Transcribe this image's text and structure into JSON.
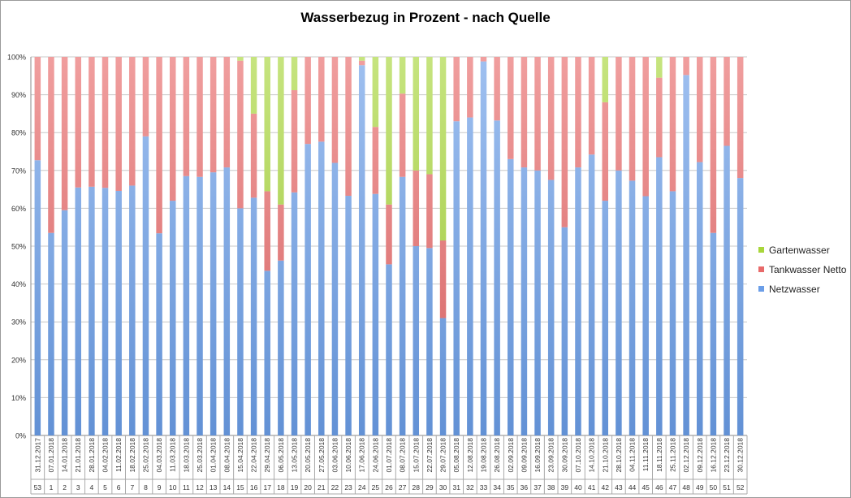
{
  "chart_data": {
    "type": "bar",
    "stacked": true,
    "normalized": true,
    "title": "Wasserbezug in Prozent - nach Quelle",
    "xlabel": "",
    "ylabel": "",
    "ylim": [
      0,
      100
    ],
    "y_ticks": [
      "0%",
      "10%",
      "20%",
      "30%",
      "40%",
      "50%",
      "60%",
      "70%",
      "80%",
      "90%",
      "100%"
    ],
    "grid": true,
    "legend_position": "right",
    "categories": [
      "31.12.2017",
      "07.01.2018",
      "14.01.2018",
      "21.01.2018",
      "28.01.2018",
      "04.02.2018",
      "11.02.2018",
      "18.02.2018",
      "25.02.2018",
      "04.03.2018",
      "11.03.2018",
      "18.03.2018",
      "25.03.2018",
      "01.04.2018",
      "08.04.2018",
      "15.04.2018",
      "22.04.2018",
      "29.04.2018",
      "06.05.2018",
      "13.05.2018",
      "20.05.2018",
      "27.05.2018",
      "03.06.2018",
      "10.06.2018",
      "17.06.2018",
      "24.06.2018",
      "01.07.2018",
      "08.07.2018",
      "15.07.2018",
      "22.07.2018",
      "29.07.2018",
      "05.08.2018",
      "12.08.2018",
      "19.08.2018",
      "26.08.2018",
      "02.09.2018",
      "09.09.2018",
      "16.09.2018",
      "23.09.2018",
      "30.09.2018",
      "07.10.2018",
      "14.10.2018",
      "21.10.2018",
      "28.10.2018",
      "04.11.2018",
      "11.11.2018",
      "18.11.2018",
      "25.11.2018",
      "02.12.2018",
      "09.12.2018",
      "16.12.2018",
      "23.12.2018",
      "30.12.2018"
    ],
    "week_numbers": [
      "53",
      "1",
      "2",
      "3",
      "4",
      "5",
      "6",
      "7",
      "8",
      "9",
      "10",
      "11",
      "12",
      "13",
      "14",
      "15",
      "16",
      "17",
      "18",
      "19",
      "20",
      "21",
      "22",
      "23",
      "24",
      "25",
      "26",
      "27",
      "28",
      "29",
      "30",
      "31",
      "32",
      "33",
      "34",
      "35",
      "36",
      "37",
      "38",
      "39",
      "40",
      "41",
      "42",
      "43",
      "44",
      "45",
      "46",
      "47",
      "48",
      "49",
      "50",
      "51",
      "52"
    ],
    "series": [
      {
        "name": "Netzwasser",
        "color": "#6b9ee8",
        "values": [
          72.7,
          53.5,
          59.5,
          65.5,
          65.7,
          65.4,
          64.6,
          66.0,
          79.0,
          53.4,
          62.0,
          68.5,
          68.3,
          69.5,
          70.8,
          60.0,
          62.8,
          43.5,
          46.2,
          64.2,
          77.0,
          77.6,
          72.0,
          63.3,
          97.8,
          63.8,
          45.2,
          68.3,
          50.0,
          49.5,
          31.0,
          83.0,
          84.0,
          98.8,
          83.2,
          73.0,
          70.8,
          70.0,
          67.5,
          55.0,
          70.8,
          74.2,
          62.0,
          70.0,
          67.3,
          63.2,
          73.5,
          64.5,
          95.2,
          72.2,
          53.5,
          76.5,
          68.0
        ]
      },
      {
        "name": "Tankwasser Netto",
        "color": "#e86a6a",
        "values": [
          27.3,
          46.5,
          40.5,
          34.5,
          34.3,
          34.6,
          35.4,
          34.0,
          21.0,
          46.6,
          38.0,
          31.5,
          31.7,
          30.5,
          29.2,
          39.0,
          22.2,
          21.0,
          14.8,
          27.0,
          23.0,
          22.4,
          28.0,
          36.7,
          1.2,
          17.7,
          15.8,
          22.0,
          20.0,
          19.5,
          20.5,
          17.0,
          16.0,
          1.2,
          16.8,
          27.0,
          29.2,
          30.0,
          32.5,
          45.0,
          29.2,
          25.8,
          26.0,
          30.0,
          32.7,
          36.8,
          21.0,
          35.5,
          4.8,
          27.8,
          46.5,
          23.5,
          32.0
        ]
      },
      {
        "name": "Gartenwasser",
        "color": "#a8d63a",
        "values": [
          0,
          0,
          0,
          0,
          0,
          0,
          0,
          0,
          0,
          0,
          0,
          0,
          0,
          0,
          0,
          1.0,
          15.0,
          35.5,
          39.0,
          8.8,
          0,
          0,
          0,
          0,
          1.0,
          18.5,
          39.0,
          9.7,
          30.0,
          31.0,
          48.5,
          0,
          0,
          0,
          0,
          0,
          0,
          0,
          0,
          0,
          0,
          0,
          12.0,
          0,
          0,
          0,
          5.5,
          0,
          0,
          0,
          0,
          0,
          0
        ]
      }
    ]
  }
}
